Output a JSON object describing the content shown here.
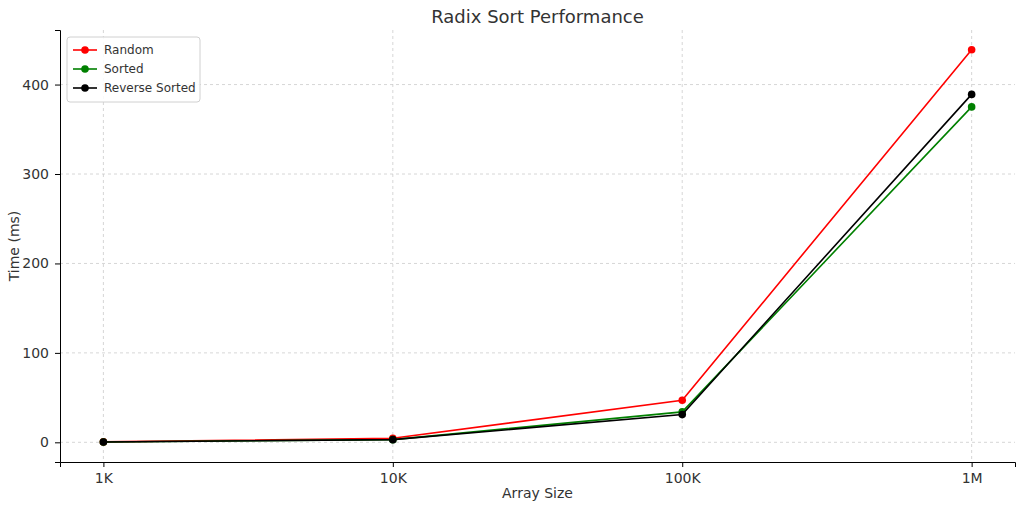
{
  "chart_data": {
    "type": "line",
    "title": "Radix Sort Performance",
    "x_label": "Array Size",
    "y_label": "Time (ms)",
    "x": [
      1000,
      10000,
      100000,
      1000000
    ],
    "series": [
      {
        "name": "Random",
        "color": "#ff0000",
        "marker": "o",
        "values": [
          0.5,
          4.5,
          47,
          439
        ]
      },
      {
        "name": "Sorted",
        "color": "#008000",
        "marker": "o",
        "values": [
          0.3,
          3,
          34,
          375
        ]
      },
      {
        "name": "Reverse Sorted",
        "color": "#000000",
        "marker": "o",
        "values": [
          0.3,
          3,
          31,
          389
        ]
      }
    ],
    "log": "x",
    "xlim": [
      708,
      1412000
    ],
    "xticks": [
      {
        "value": 1000,
        "label": "1K"
      },
      {
        "value": 10000,
        "label": "10K"
      },
      {
        "value": 100000,
        "label": "100K"
      },
      {
        "value": 1000000,
        "label": "1M"
      }
    ],
    "ylim": [
      -22,
      461
    ],
    "yticks": [
      0,
      100,
      200,
      300,
      400
    ],
    "grid": true,
    "legend": "upper-left"
  }
}
